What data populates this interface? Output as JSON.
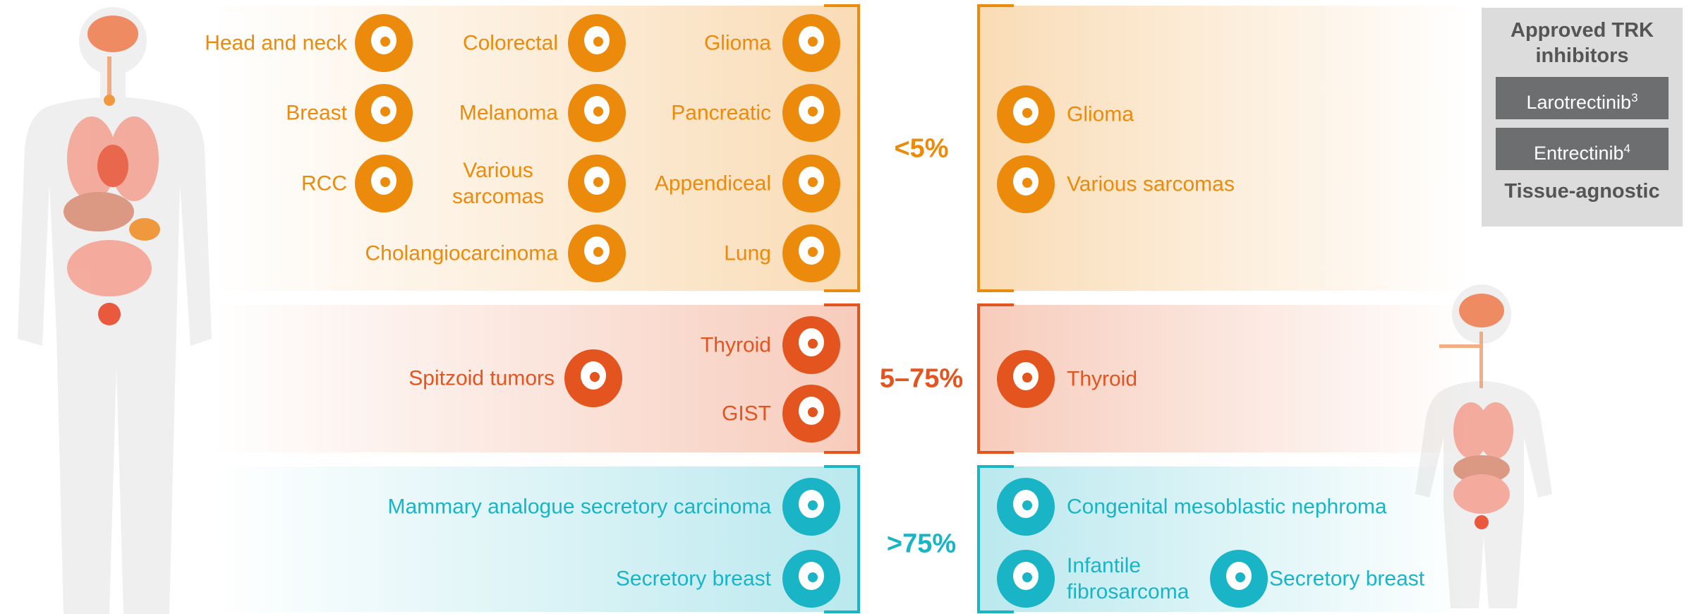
{
  "adult": {
    "groups": [
      {
        "label": "<5%",
        "color": "#ec8a0b",
        "tumors": [
          "Head and neck",
          "Colorectal",
          "Glioma",
          "Breast",
          "Melanoma",
          "Pancreatic",
          "RCC",
          "Various sarcomas",
          "Appendiceal",
          "Cholangiocarcinoma",
          "Lung"
        ]
      },
      {
        "label": "5–75%",
        "color": "#e4541f",
        "tumors": [
          "Spitzoid tumors",
          "Thyroid",
          "GIST"
        ]
      },
      {
        "label": ">75%",
        "color": "#19b4c6",
        "tumors": [
          "Mammary analogue secretory carcinoma",
          "Secretory breast"
        ]
      }
    ]
  },
  "pediatric": {
    "groups": [
      {
        "tumors": [
          "Glioma",
          "Various sarcomas"
        ]
      },
      {
        "tumors": [
          "Thyroid"
        ]
      },
      {
        "tumors": [
          "Congenital mesoblastic nephroma",
          "Infantile fibrosarcoma",
          "Secretory breast"
        ]
      }
    ]
  },
  "approved": {
    "title": "Approved TRK inhibitors",
    "drugs": [
      {
        "name": "Larotrectinib",
        "ref": "3"
      },
      {
        "name": "Entrectinib",
        "ref": "4"
      }
    ],
    "footer": "Tissue-agnostic"
  }
}
